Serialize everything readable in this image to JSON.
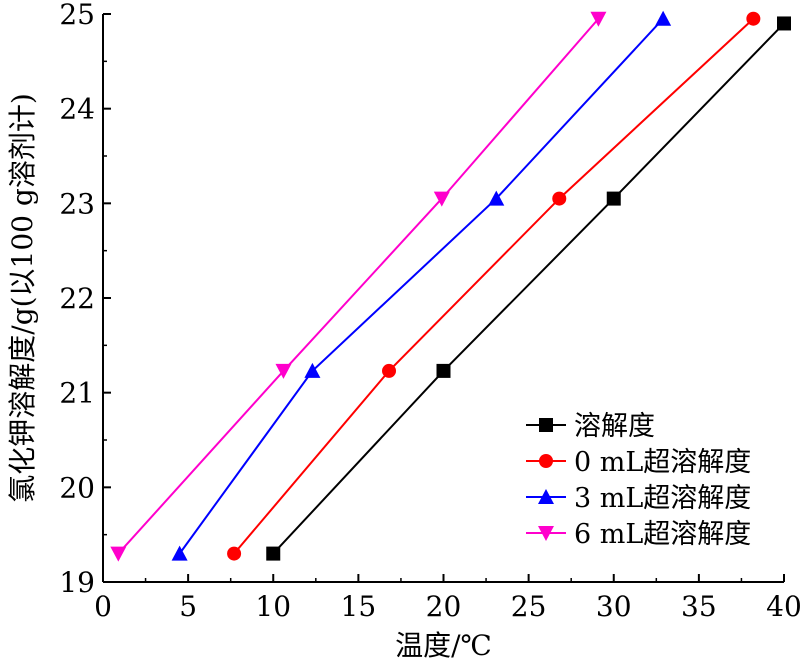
{
  "chart_data": {
    "type": "line",
    "title": "",
    "xlabel": "温度/℃",
    "ylabel": "氯化钾溶解度/g(以100 g溶剂计)",
    "xlim": [
      0,
      40
    ],
    "ylim": [
      19,
      25
    ],
    "xticks": [
      0,
      5,
      10,
      15,
      20,
      25,
      30,
      35,
      40
    ],
    "yticks": [
      19,
      20,
      21,
      22,
      23,
      24,
      25
    ],
    "grid": false,
    "legend_position": "bottom-right",
    "series": [
      {
        "name": "溶解度",
        "color": "#000000",
        "marker": "square",
        "x": [
          10,
          20,
          30,
          40
        ],
        "y": [
          19.3,
          21.23,
          23.05,
          24.9
        ]
      },
      {
        "name": "0 mL超溶解度",
        "color": "#ff0000",
        "marker": "circle",
        "x": [
          7.7,
          16.8,
          26.8,
          38.2
        ],
        "y": [
          19.3,
          21.23,
          23.05,
          24.95
        ]
      },
      {
        "name": "3 mL超溶解度",
        "color": "#0000ff",
        "marker": "triangle-up",
        "x": [
          4.5,
          12.3,
          23.1,
          32.9
        ],
        "y": [
          19.3,
          21.23,
          23.05,
          24.95
        ]
      },
      {
        "name": "6 mL超溶解度",
        "color": "#ff00cc",
        "marker": "triangle-down",
        "x": [
          0.9,
          10.6,
          19.9,
          29.1
        ],
        "y": [
          19.3,
          21.23,
          23.05,
          24.95
        ]
      }
    ]
  }
}
